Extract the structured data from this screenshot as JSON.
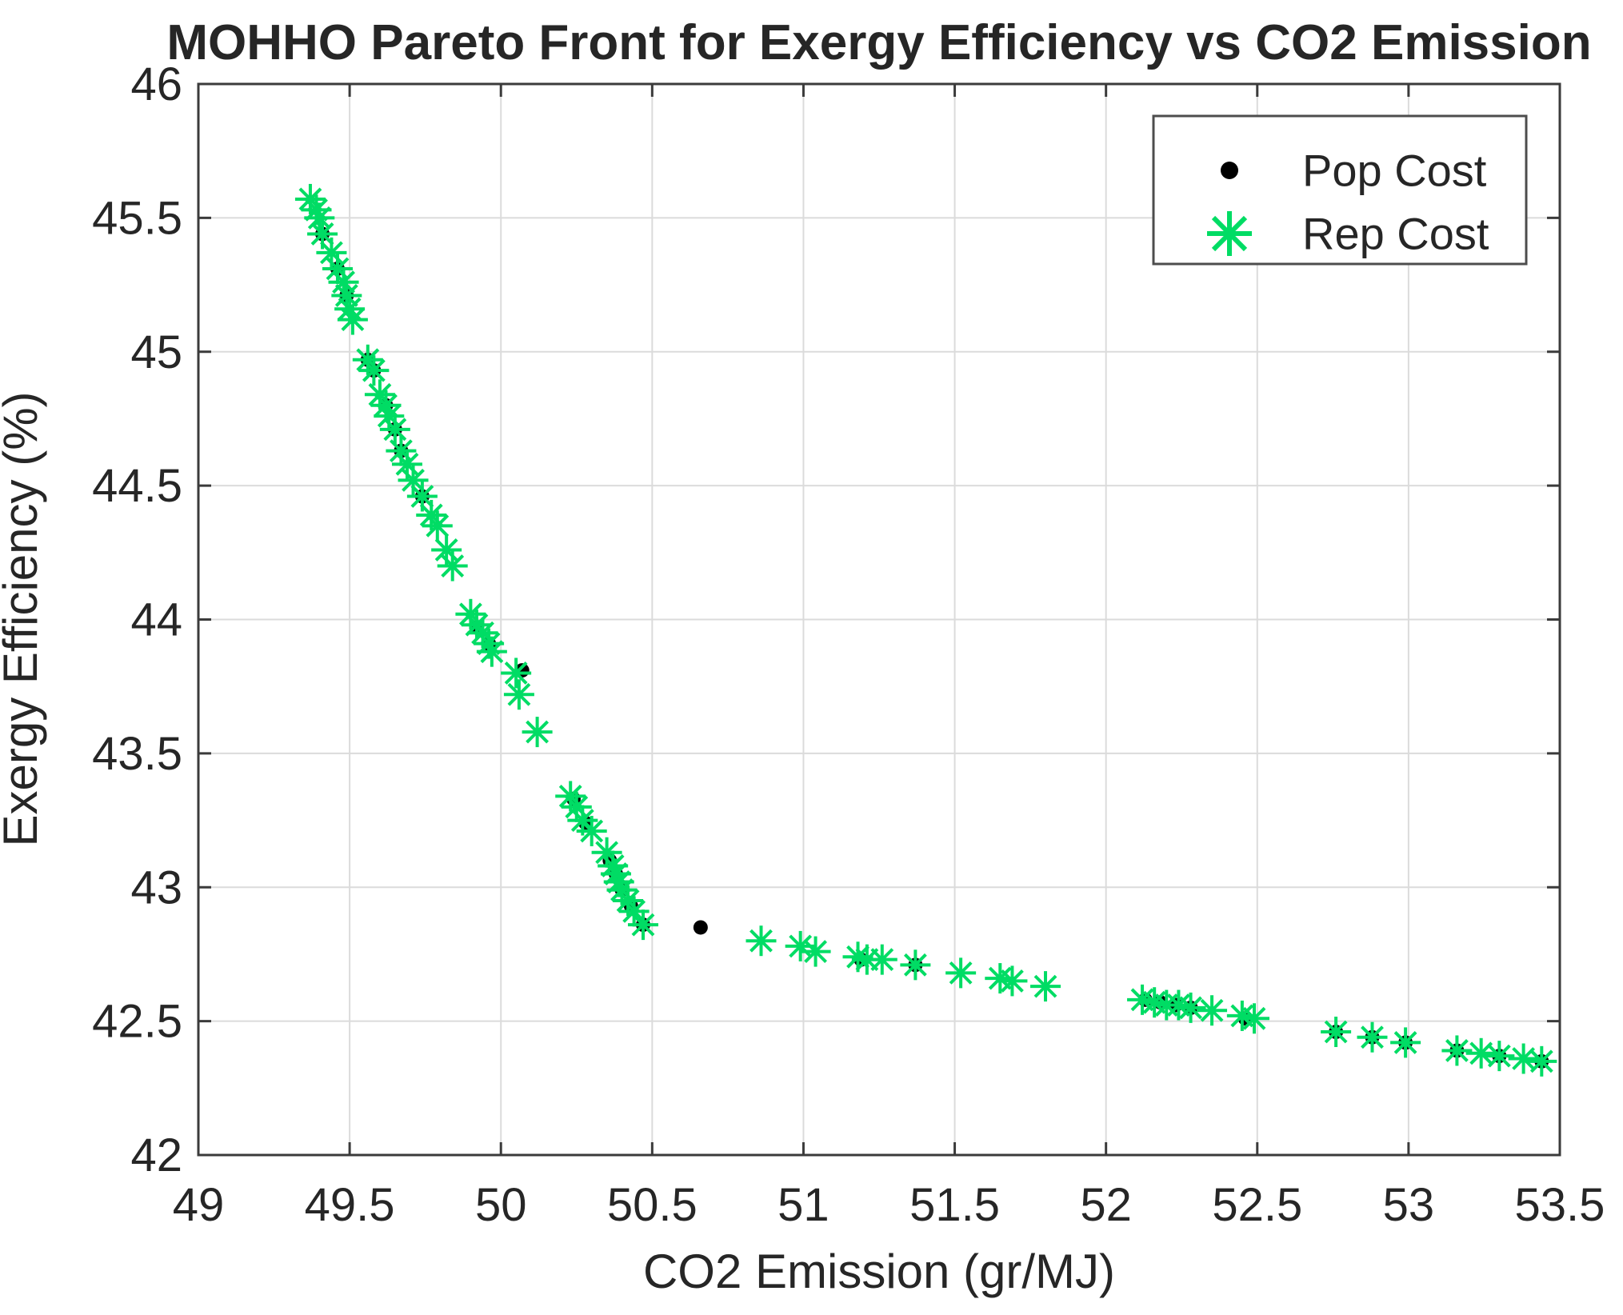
{
  "chart_data": {
    "type": "scatter",
    "title": "MOHHO Pareto Front for Exergy Efficiency vs CO2 Emission",
    "xlabel": "CO2 Emission (gr/MJ)",
    "ylabel": "Exergy Efficiency (%)",
    "xlim": [
      49,
      53.5
    ],
    "ylim": [
      42,
      46
    ],
    "xticks": [
      49,
      49.5,
      50,
      50.5,
      51,
      51.5,
      52,
      52.5,
      53,
      53.5
    ],
    "yticks": [
      42,
      42.5,
      43,
      43.5,
      44,
      44.5,
      45,
      45.5,
      46
    ],
    "grid": true,
    "legend_position": "top-right",
    "colors": {
      "pop": "#000000",
      "rep": "#00dc64",
      "grid": "#dbdbdb",
      "axis": "#3b3b3b",
      "text": "#262626",
      "legend_border": "#4d4d4d",
      "background": "#ffffff"
    },
    "series": [
      {
        "name": "Pop Cost",
        "marker": "dot",
        "color": "#000000",
        "points": [
          [
            49.41,
            45.44
          ],
          [
            49.46,
            45.31
          ],
          [
            49.49,
            45.21
          ],
          [
            49.56,
            44.97
          ],
          [
            49.58,
            44.93
          ],
          [
            49.62,
            44.8
          ],
          [
            49.65,
            44.71
          ],
          [
            49.67,
            44.63
          ],
          [
            49.74,
            44.46
          ],
          [
            49.92,
            43.97
          ],
          [
            49.96,
            43.91
          ],
          [
            50.07,
            43.81
          ],
          [
            50.24,
            43.33
          ],
          [
            50.28,
            43.24
          ],
          [
            50.36,
            43.1
          ],
          [
            50.38,
            43.05
          ],
          [
            50.4,
            42.99
          ],
          [
            50.43,
            42.93
          ],
          [
            50.47,
            42.86
          ],
          [
            50.66,
            42.85
          ],
          [
            51.19,
            42.73
          ],
          [
            51.37,
            42.71
          ],
          [
            52.13,
            42.58
          ],
          [
            52.18,
            42.57
          ],
          [
            52.23,
            42.56
          ],
          [
            52.28,
            42.55
          ],
          [
            52.46,
            42.51
          ],
          [
            52.76,
            42.46
          ],
          [
            52.88,
            42.44
          ],
          [
            52.99,
            42.42
          ],
          [
            53.16,
            42.39
          ],
          [
            53.3,
            42.37
          ],
          [
            53.44,
            42.35
          ]
        ]
      },
      {
        "name": "Rep Cost",
        "marker": "asterisk",
        "color": "#00dc64",
        "points": [
          [
            49.37,
            45.57
          ],
          [
            49.39,
            45.53
          ],
          [
            49.4,
            45.5
          ],
          [
            49.41,
            45.44
          ],
          [
            49.44,
            45.37
          ],
          [
            49.46,
            45.31
          ],
          [
            49.48,
            45.26
          ],
          [
            49.49,
            45.21
          ],
          [
            49.5,
            45.16
          ],
          [
            49.51,
            45.12
          ],
          [
            49.56,
            44.97
          ],
          [
            49.58,
            44.93
          ],
          [
            49.6,
            44.84
          ],
          [
            49.62,
            44.8
          ],
          [
            49.63,
            44.76
          ],
          [
            49.65,
            44.71
          ],
          [
            49.67,
            44.63
          ],
          [
            49.69,
            44.58
          ],
          [
            49.71,
            44.52
          ],
          [
            49.74,
            44.46
          ],
          [
            49.77,
            44.39
          ],
          [
            49.79,
            44.35
          ],
          [
            49.82,
            44.26
          ],
          [
            49.84,
            44.2
          ],
          [
            49.9,
            44.02
          ],
          [
            49.92,
            43.98
          ],
          [
            49.94,
            43.95
          ],
          [
            49.96,
            43.91
          ],
          [
            49.97,
            43.88
          ],
          [
            50.05,
            43.8
          ],
          [
            50.06,
            43.72
          ],
          [
            50.12,
            43.58
          ],
          [
            50.23,
            43.34
          ],
          [
            50.25,
            43.3
          ],
          [
            50.27,
            43.25
          ],
          [
            50.3,
            43.21
          ],
          [
            50.35,
            43.13
          ],
          [
            50.37,
            43.08
          ],
          [
            50.38,
            43.05
          ],
          [
            50.39,
            43.02
          ],
          [
            50.4,
            42.99
          ],
          [
            50.42,
            42.95
          ],
          [
            50.44,
            42.91
          ],
          [
            50.47,
            42.86
          ],
          [
            50.86,
            42.8
          ],
          [
            50.99,
            42.78
          ],
          [
            51.04,
            42.76
          ],
          [
            51.18,
            42.74
          ],
          [
            51.21,
            42.73
          ],
          [
            51.26,
            42.73
          ],
          [
            51.37,
            42.71
          ],
          [
            51.52,
            42.68
          ],
          [
            51.65,
            42.66
          ],
          [
            51.69,
            42.65
          ],
          [
            51.8,
            42.63
          ],
          [
            52.12,
            42.58
          ],
          [
            52.16,
            42.57
          ],
          [
            52.2,
            42.56
          ],
          [
            52.24,
            42.56
          ],
          [
            52.28,
            42.55
          ],
          [
            52.35,
            42.54
          ],
          [
            52.45,
            42.52
          ],
          [
            52.49,
            42.51
          ],
          [
            52.76,
            42.46
          ],
          [
            52.88,
            42.44
          ],
          [
            52.99,
            42.42
          ],
          [
            53.16,
            42.39
          ],
          [
            53.24,
            42.38
          ],
          [
            53.3,
            42.37
          ],
          [
            53.38,
            42.36
          ],
          [
            53.44,
            42.35
          ]
        ]
      }
    ]
  }
}
